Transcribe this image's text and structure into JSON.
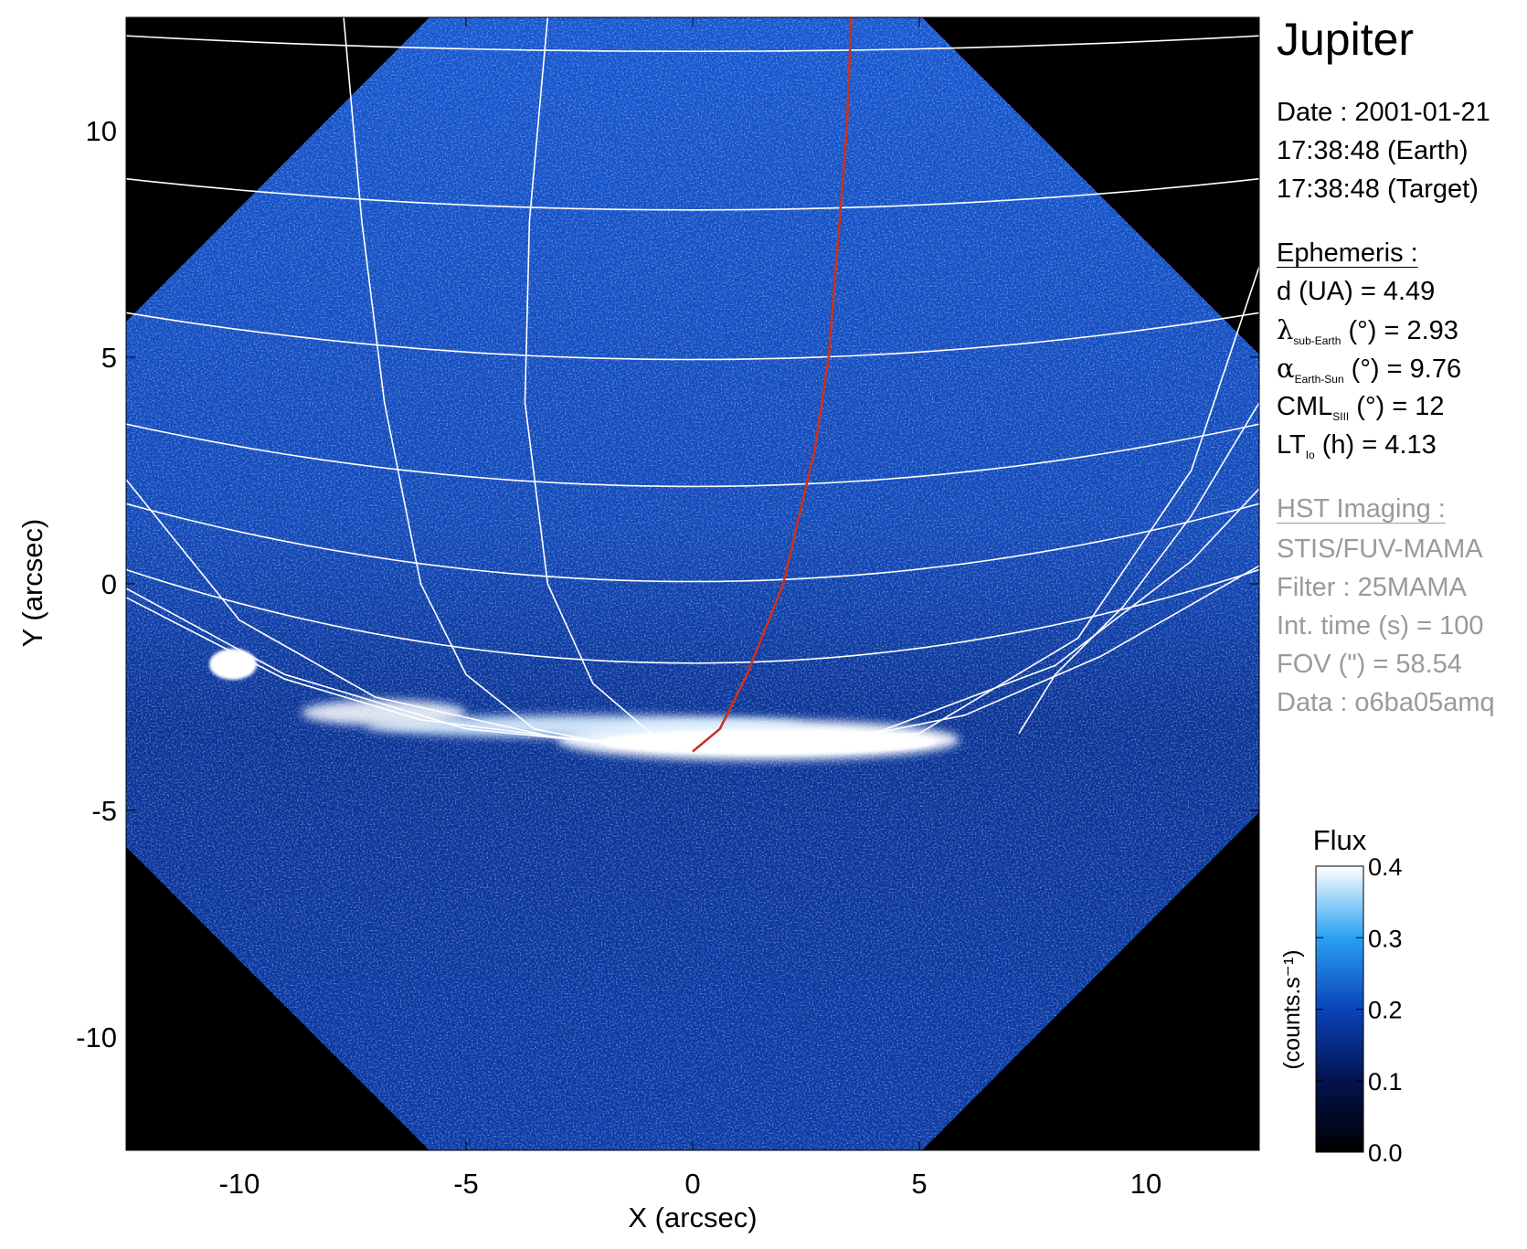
{
  "chart_data": {
    "type": "heatmap",
    "title": "Jupiter",
    "xlabel": "X (arcsec)",
    "ylabel": "Y (arcsec)",
    "xlim": [
      -12.5,
      12.5
    ],
    "ylim": [
      -12.5,
      12.5
    ],
    "x_ticks": [
      "-10",
      "-5",
      "0",
      "5",
      "10"
    ],
    "y_ticks": [
      "10",
      "5",
      "0",
      "-5",
      "-10"
    ],
    "colorbar": {
      "title": "Flux",
      "label": "(counts.s⁻¹)",
      "range": [
        0.0,
        0.4
      ],
      "ticks": [
        "0.4",
        "0.3",
        "0.2",
        "0.1",
        "0.0"
      ],
      "colors": [
        "#000000",
        "#03134f",
        "#0a44b8",
        "#2aa0f2",
        "#ffffff"
      ]
    },
    "red_line_points": [
      [
        0.0,
        -3.7
      ],
      [
        0.6,
        -3.2
      ],
      [
        1.2,
        -2.0
      ],
      [
        2.0,
        0.0
      ],
      [
        2.7,
        3.0
      ],
      [
        3.0,
        5.0
      ],
      [
        3.4,
        10.0
      ],
      [
        3.5,
        12.5
      ]
    ],
    "colors": {
      "grid": "#ffffff",
      "red_line": "#c8321e",
      "outside": "#000000"
    }
  },
  "info": {
    "title": "Jupiter",
    "date_line": "Date : 2001-01-21",
    "time_earth": "17:38:48 (Earth)",
    "time_target": "17:38:48 (Target)",
    "ephemeris_header": "Ephemeris :",
    "distance": "d (UA)    = 4.49",
    "lambda_sym": "λ",
    "lambda_sub": "sub-Earth",
    "lambda_val": " (°) = 2.93",
    "alpha_sym": "α",
    "alpha_sub": "Earth-Sun",
    "alpha_val": " (°) = 9.76",
    "cml_main": "CML",
    "cml_sub": "SIII",
    "cml_val": " (°) = 12",
    "lt_main": "LT",
    "lt_sub": "Io",
    "lt_val": " (h) = 4.13",
    "hst_header": "HST Imaging :",
    "instrument": "STIS/FUV-MAMA",
    "filter": "Filter : 25MAMA",
    "int_time": "Int. time (s) = 100",
    "fov": "FOV (\") = 58.54",
    "data_id": "Data : o6ba05amq"
  }
}
